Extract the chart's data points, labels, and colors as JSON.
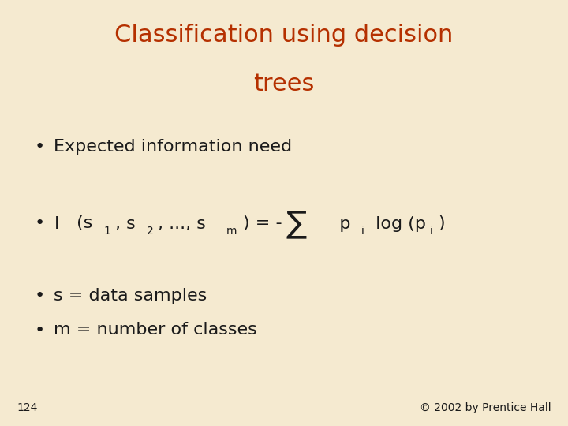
{
  "title_line1": "Classification using decision",
  "title_line2": "trees",
  "title_color": "#B53000",
  "background_color": "#F5EAD0",
  "text_color": "#1a1a1a",
  "bullet1": "Expected information need",
  "bullet3": "s = data samples",
  "bullet4": "m = number of classes",
  "page_num": "124",
  "copyright": "© 2002 by Prentice Hall",
  "fig_width": 7.2,
  "fig_height": 5.4,
  "dpi": 100,
  "title_fontsize": 22,
  "body_fontsize": 16,
  "sub_fontsize": 10,
  "sigma_fontsize": 28,
  "small_fontsize": 10
}
